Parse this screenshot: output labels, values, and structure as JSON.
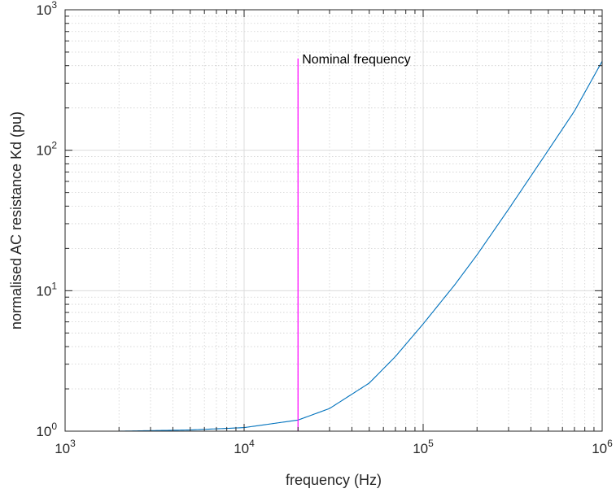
{
  "chart_data": {
    "type": "line",
    "title": "",
    "xlabel": "frequency (Hz)",
    "ylabel": "normalised AC resistance Kd (pu)",
    "xscale": "log",
    "yscale": "log",
    "xlim": [
      1000,
      1000000
    ],
    "ylim": [
      1,
      1000
    ],
    "grid": true,
    "minor_grid": true,
    "x_ticks": [
      {
        "base": "10",
        "exp": "3"
      },
      {
        "base": "10",
        "exp": "4"
      },
      {
        "base": "10",
        "exp": "5"
      },
      {
        "base": "10",
        "exp": "6"
      }
    ],
    "y_ticks": [
      {
        "base": "10",
        "exp": "0"
      },
      {
        "base": "10",
        "exp": "1"
      },
      {
        "base": "10",
        "exp": "2"
      },
      {
        "base": "10",
        "exp": "3"
      }
    ],
    "series": [
      {
        "color": "#0072BD",
        "x": [
          1000,
          2000,
          5000,
          10000,
          20000,
          30000,
          50000,
          70000,
          100000,
          150000,
          200000,
          300000,
          500000,
          700000,
          1000000
        ],
        "y": [
          1.0,
          1.0,
          1.02,
          1.06,
          1.2,
          1.45,
          2.2,
          3.4,
          5.8,
          11.0,
          18.0,
          38.0,
          100.0,
          190.0,
          430.0
        ]
      }
    ],
    "annotations": [
      {
        "type": "vline",
        "x": 20000,
        "y_from": 1,
        "y_to": 450,
        "color": "#FF00FF",
        "text": "Nominal frequency"
      }
    ]
  }
}
